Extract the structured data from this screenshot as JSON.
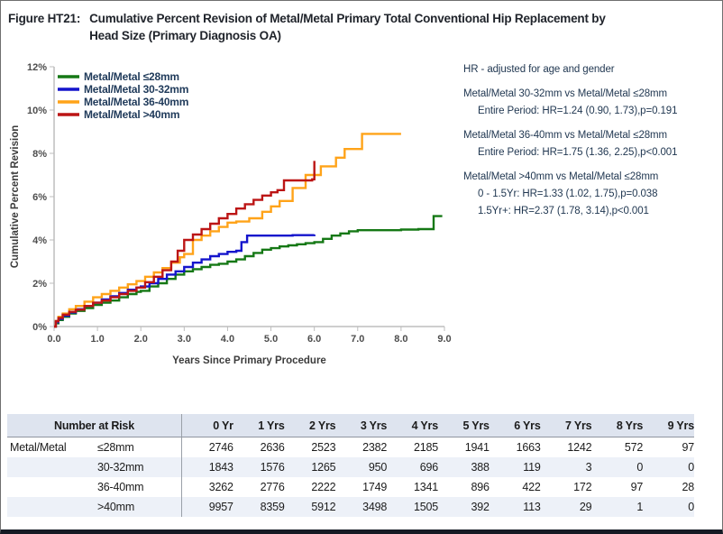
{
  "title": {
    "label": "Figure HT21:",
    "line1": "Cumulative Percent Revision of Metal/Metal Primary Total Conventional Hip Replacement by",
    "line2": "Head Size (Primary Diagnosis OA)"
  },
  "chart_data": {
    "type": "line",
    "step": true,
    "xlabel": "Years Since Primary Procedure",
    "ylabel": "Cumulative Percent Revision",
    "xlim": [
      0,
      9
    ],
    "ylim": [
      0,
      12
    ],
    "x_ticks": [
      "0.0",
      "1.0",
      "2.0",
      "3.0",
      "4.0",
      "5.0",
      "6.0",
      "7.0",
      "8.0",
      "9.0"
    ],
    "y_ticks": [
      "0%",
      "2%",
      "4%",
      "6%",
      "8%",
      "10%",
      "12%"
    ],
    "legend_position": "top-left-inside",
    "grid": false,
    "series": [
      {
        "name": "Metal/Metal ≤28mm",
        "color": "#157815",
        "points": [
          [
            0,
            0
          ],
          [
            0.04,
            0.15
          ],
          [
            0.1,
            0.3
          ],
          [
            0.2,
            0.45
          ],
          [
            0.35,
            0.6
          ],
          [
            0.5,
            0.72
          ],
          [
            0.7,
            0.85
          ],
          [
            0.9,
            1.0
          ],
          [
            1.1,
            1.1
          ],
          [
            1.3,
            1.2
          ],
          [
            1.5,
            1.35
          ],
          [
            1.7,
            1.5
          ],
          [
            1.9,
            1.6
          ],
          [
            2.0,
            1.65
          ],
          [
            2.2,
            1.85
          ],
          [
            2.4,
            2.0
          ],
          [
            2.6,
            2.2
          ],
          [
            2.8,
            2.4
          ],
          [
            3.0,
            2.55
          ],
          [
            3.2,
            2.65
          ],
          [
            3.4,
            2.75
          ],
          [
            3.6,
            2.85
          ],
          [
            3.8,
            2.9
          ],
          [
            4.0,
            3.0
          ],
          [
            4.2,
            3.1
          ],
          [
            4.4,
            3.25
          ],
          [
            4.6,
            3.4
          ],
          [
            4.8,
            3.55
          ],
          [
            5.0,
            3.62
          ],
          [
            5.2,
            3.7
          ],
          [
            5.4,
            3.75
          ],
          [
            5.6,
            3.8
          ],
          [
            5.8,
            3.85
          ],
          [
            6.0,
            3.9
          ],
          [
            6.2,
            4.05
          ],
          [
            6.4,
            4.2
          ],
          [
            6.6,
            4.3
          ],
          [
            6.8,
            4.4
          ],
          [
            7.0,
            4.45
          ],
          [
            7.5,
            4.45
          ],
          [
            8.0,
            4.48
          ],
          [
            8.4,
            4.5
          ],
          [
            8.75,
            5.1
          ],
          [
            8.95,
            5.1
          ]
        ]
      },
      {
        "name": "Metal/Metal 30-32mm",
        "color": "#1414cc",
        "points": [
          [
            0,
            0
          ],
          [
            0.04,
            0.2
          ],
          [
            0.1,
            0.35
          ],
          [
            0.2,
            0.5
          ],
          [
            0.35,
            0.65
          ],
          [
            0.5,
            0.8
          ],
          [
            0.7,
            0.95
          ],
          [
            0.9,
            1.1
          ],
          [
            1.1,
            1.25
          ],
          [
            1.3,
            1.4
          ],
          [
            1.5,
            1.55
          ],
          [
            1.7,
            1.7
          ],
          [
            1.9,
            1.8
          ],
          [
            2.0,
            1.85
          ],
          [
            2.2,
            2.0
          ],
          [
            2.4,
            2.2
          ],
          [
            2.6,
            2.4
          ],
          [
            2.8,
            2.55
          ],
          [
            3.0,
            2.75
          ],
          [
            3.2,
            2.95
          ],
          [
            3.4,
            3.1
          ],
          [
            3.6,
            3.25
          ],
          [
            3.8,
            3.35
          ],
          [
            4.0,
            3.45
          ],
          [
            4.2,
            3.5
          ],
          [
            4.32,
            3.9
          ],
          [
            4.45,
            4.2
          ],
          [
            5.0,
            4.2
          ],
          [
            5.5,
            4.22
          ],
          [
            6.0,
            4.25
          ]
        ]
      },
      {
        "name": "Metal/Metal 36-40mm",
        "color": "#ffa319",
        "points": [
          [
            0,
            0
          ],
          [
            0.04,
            0.25
          ],
          [
            0.1,
            0.45
          ],
          [
            0.2,
            0.6
          ],
          [
            0.35,
            0.8
          ],
          [
            0.5,
            0.95
          ],
          [
            0.7,
            1.15
          ],
          [
            0.9,
            1.35
          ],
          [
            1.1,
            1.5
          ],
          [
            1.3,
            1.65
          ],
          [
            1.5,
            1.8
          ],
          [
            1.7,
            1.95
          ],
          [
            1.9,
            2.1
          ],
          [
            2.1,
            2.3
          ],
          [
            2.3,
            2.5
          ],
          [
            2.5,
            2.7
          ],
          [
            2.7,
            2.95
          ],
          [
            2.9,
            3.2
          ],
          [
            3.0,
            3.35
          ],
          [
            3.2,
            4.0
          ],
          [
            3.4,
            4.2
          ],
          [
            3.6,
            4.4
          ],
          [
            3.8,
            4.6
          ],
          [
            4.0,
            4.8
          ],
          [
            4.2,
            4.85
          ],
          [
            4.5,
            5.0
          ],
          [
            4.8,
            5.3
          ],
          [
            5.0,
            5.55
          ],
          [
            5.2,
            5.8
          ],
          [
            5.5,
            6.4
          ],
          [
            5.8,
            7.0
          ],
          [
            6.15,
            7.4
          ],
          [
            6.5,
            7.8
          ],
          [
            6.7,
            8.2
          ],
          [
            7.1,
            8.9
          ],
          [
            8.0,
            8.9
          ]
        ]
      },
      {
        "name": "Metal/Metal >40mm",
        "color": "#bc1515",
        "points": [
          [
            0,
            0
          ],
          [
            0.04,
            0.25
          ],
          [
            0.1,
            0.4
          ],
          [
            0.2,
            0.55
          ],
          [
            0.35,
            0.68
          ],
          [
            0.5,
            0.78
          ],
          [
            0.7,
            0.95
          ],
          [
            0.9,
            1.1
          ],
          [
            1.1,
            1.2
          ],
          [
            1.3,
            1.35
          ],
          [
            1.5,
            1.5
          ],
          [
            1.7,
            1.65
          ],
          [
            1.9,
            1.8
          ],
          [
            2.1,
            2.05
          ],
          [
            2.3,
            2.3
          ],
          [
            2.5,
            2.6
          ],
          [
            2.7,
            3.0
          ],
          [
            2.85,
            3.5
          ],
          [
            3.0,
            4.0
          ],
          [
            3.2,
            4.25
          ],
          [
            3.4,
            4.5
          ],
          [
            3.6,
            4.75
          ],
          [
            3.8,
            5.0
          ],
          [
            4.0,
            5.2
          ],
          [
            4.2,
            5.45
          ],
          [
            4.4,
            5.65
          ],
          [
            4.6,
            5.85
          ],
          [
            4.8,
            6.05
          ],
          [
            5.0,
            6.2
          ],
          [
            5.15,
            6.3
          ],
          [
            5.3,
            6.75
          ],
          [
            5.95,
            6.8
          ],
          [
            6.0,
            7.65
          ]
        ]
      }
    ]
  },
  "annotations": {
    "note": "HR - adjusted for age and gender",
    "comparisons": [
      {
        "title": "Metal/Metal 30-32mm vs Metal/Metal ≤28mm",
        "lines": [
          "Entire Period: HR=1.24 (0.90, 1.73),p=0.191"
        ]
      },
      {
        "title": "Metal/Metal 36-40mm vs Metal/Metal ≤28mm",
        "lines": [
          "Entire Period: HR=1.75 (1.36, 2.25),p<0.001"
        ]
      },
      {
        "title": "Metal/Metal >40mm vs Metal/Metal ≤28mm",
        "lines": [
          "0 - 1.5Yr: HR=1.33 (1.02, 1.75),p=0.038",
          "1.5Yr+: HR=2.37 (1.78, 3.14),p<0.001"
        ]
      }
    ]
  },
  "risk_table": {
    "title": "Number at Risk",
    "col_headers": [
      "0 Yr",
      "1 Yrs",
      "2 Yrs",
      "3 Yrs",
      "4 Yrs",
      "5 Yrs",
      "6 Yrs",
      "7 Yrs",
      "8 Yrs",
      "9 Yrs"
    ],
    "rows": [
      {
        "group": "Metal/Metal",
        "size": "≤28mm",
        "values": [
          2746,
          2636,
          2523,
          2382,
          2185,
          1941,
          1663,
          1242,
          572,
          97
        ]
      },
      {
        "group": "",
        "size": "30-32mm",
        "values": [
          1843,
          1576,
          1265,
          950,
          696,
          388,
          119,
          3,
          0,
          0
        ]
      },
      {
        "group": "",
        "size": "36-40mm",
        "values": [
          3262,
          2776,
          2222,
          1749,
          1341,
          896,
          422,
          172,
          97,
          28
        ]
      },
      {
        "group": "",
        "size": ">40mm",
        "values": [
          9957,
          8359,
          5912,
          3498,
          1505,
          392,
          113,
          29,
          1,
          0
        ]
      }
    ]
  }
}
